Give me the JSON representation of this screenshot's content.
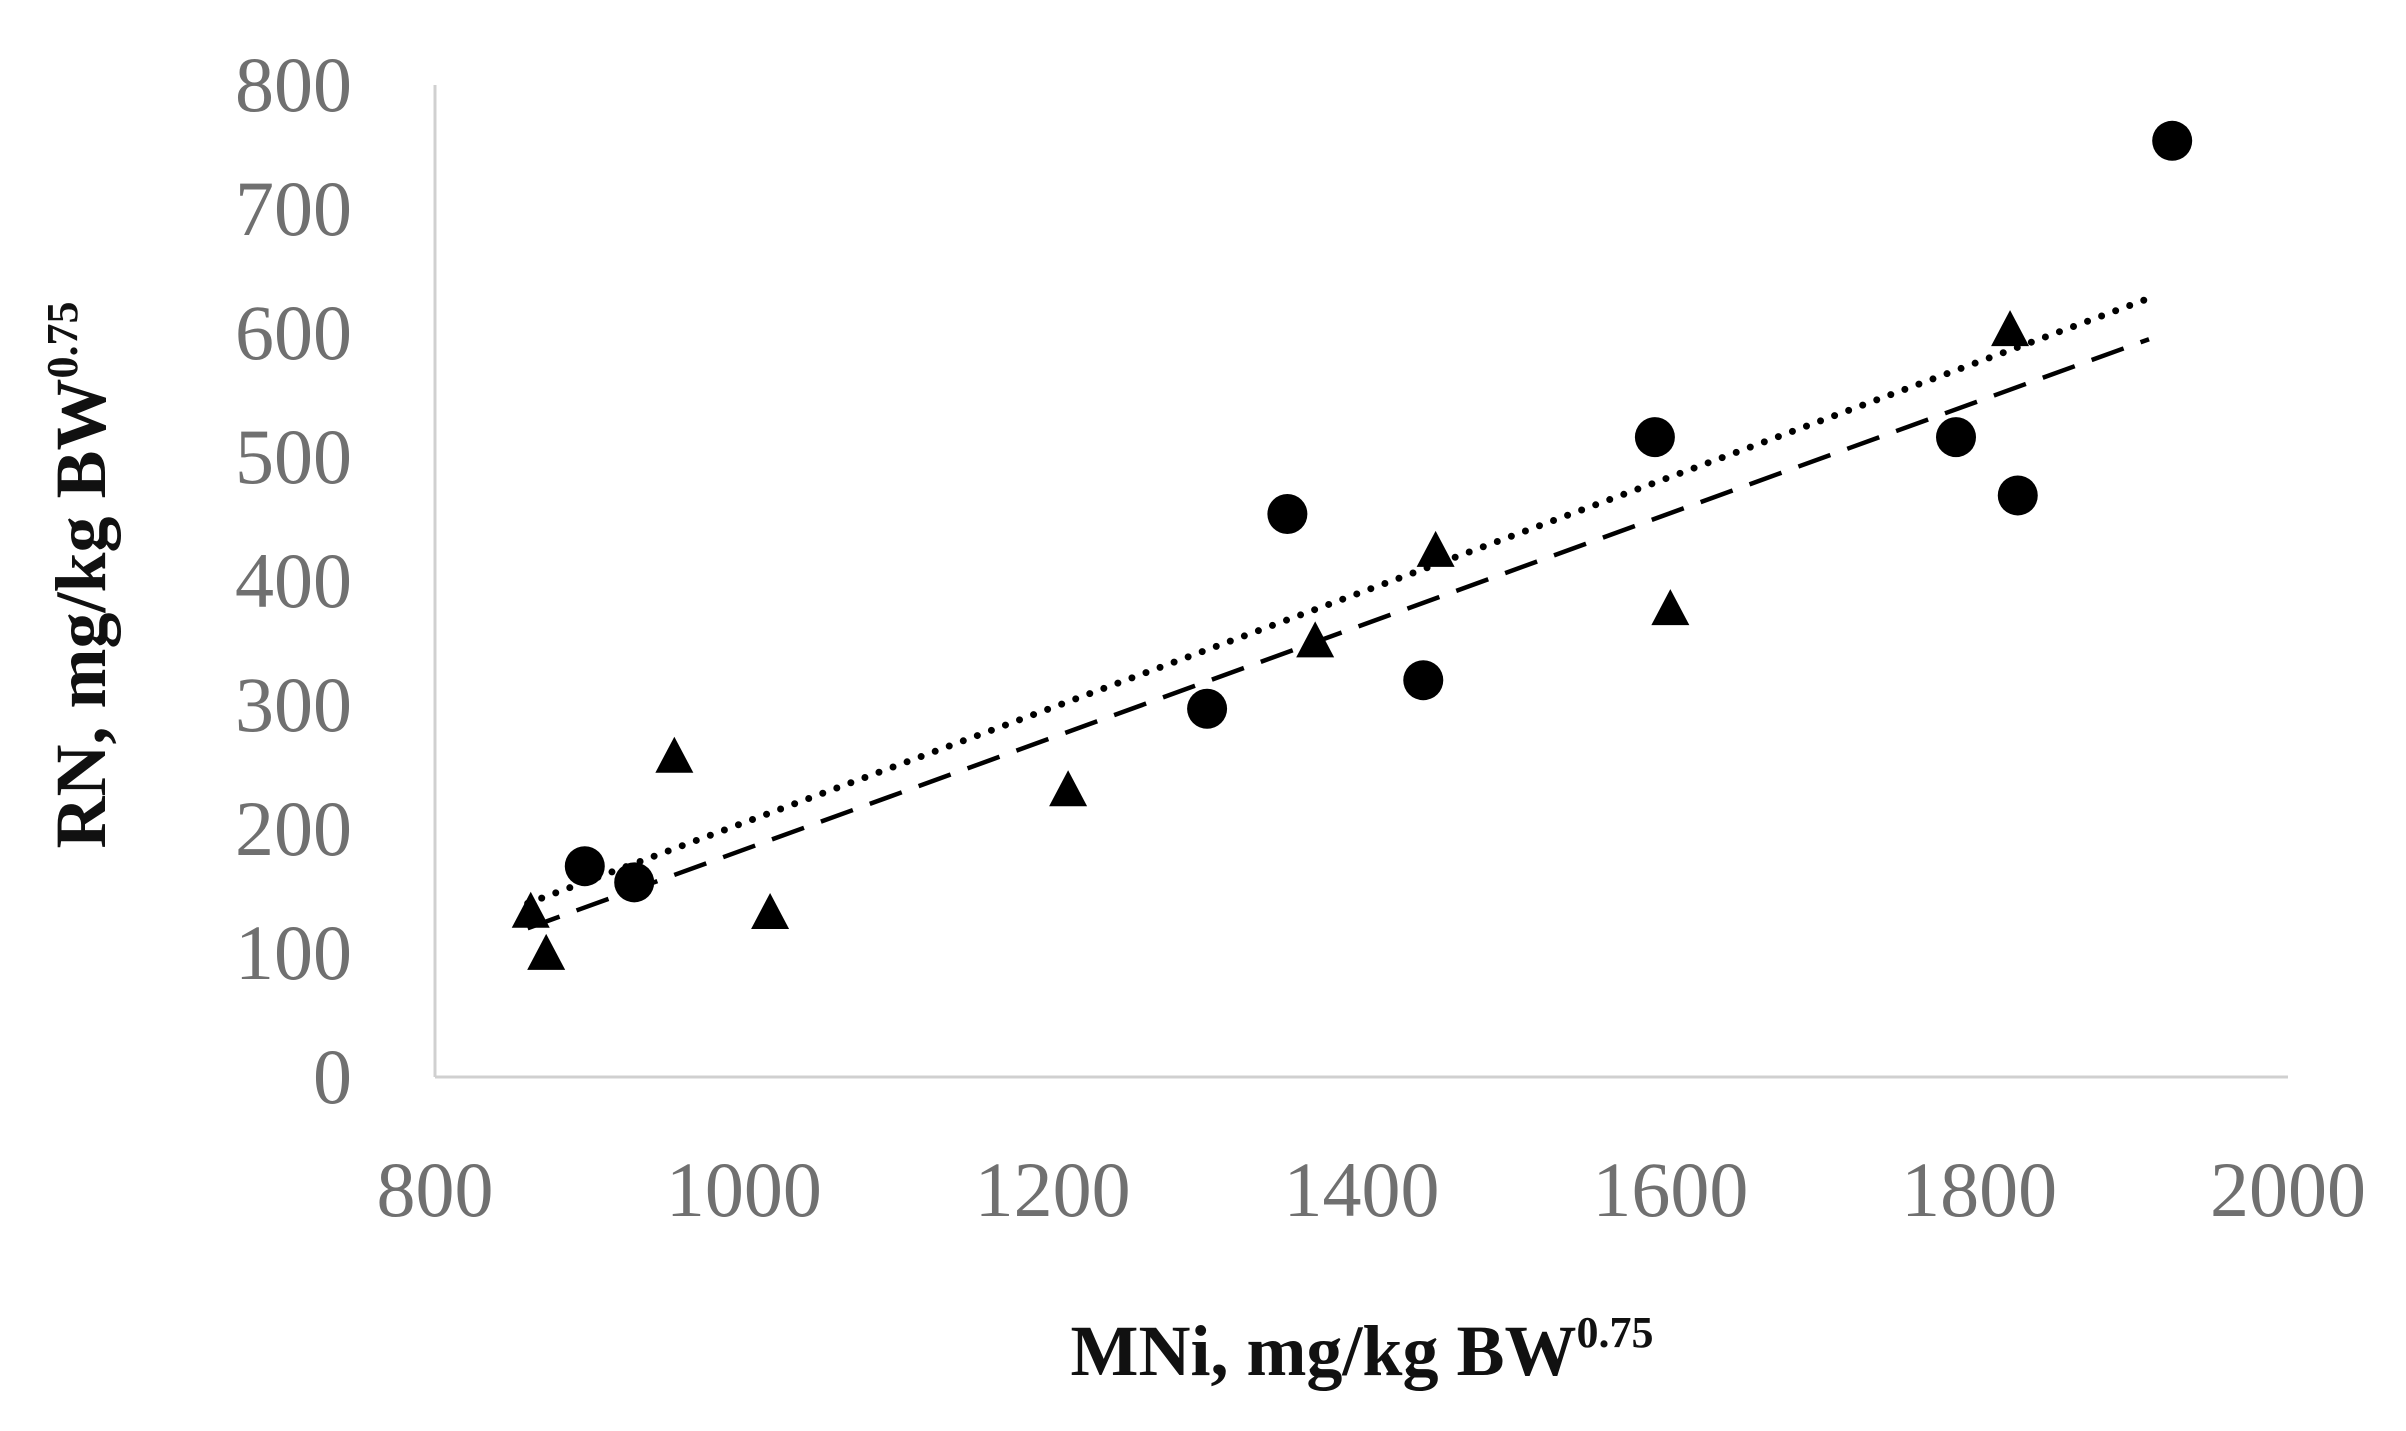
{
  "chart_data": {
    "type": "scatter",
    "title": "",
    "xlabel": "MNi, mg/kg BW",
    "xlabel_superscript": "0.75",
    "ylabel": "RN, mg/kg BW",
    "ylabel_superscript": "0.75",
    "xlim": [
      800,
      2000
    ],
    "ylim": [
      0,
      800
    ],
    "x_ticks": [
      800,
      1000,
      1200,
      1400,
      1600,
      1800,
      2000
    ],
    "y_ticks": [
      0,
      100,
      200,
      300,
      400,
      500,
      600,
      700,
      800
    ],
    "grid": false,
    "legend": "none",
    "series": [
      {
        "marker": "circle",
        "trendline": "dotted",
        "color": "#000000",
        "points": [
          {
            "x": 897,
            "y": 170
          },
          {
            "x": 929,
            "y": 157
          },
          {
            "x": 1300,
            "y": 297
          },
          {
            "x": 1352,
            "y": 454
          },
          {
            "x": 1440,
            "y": 320
          },
          {
            "x": 1590,
            "y": 516
          },
          {
            "x": 1785,
            "y": 516
          },
          {
            "x": 1825,
            "y": 469
          },
          {
            "x": 1925,
            "y": 755
          }
        ],
        "trend_points": [
          {
            "x": 860,
            "y": 140
          },
          {
            "x": 1910,
            "y": 628
          }
        ]
      },
      {
        "marker": "triangle",
        "trendline": "dashed",
        "color": "#000000",
        "points": [
          {
            "x": 862,
            "y": 132
          },
          {
            "x": 872,
            "y": 98
          },
          {
            "x": 955,
            "y": 257
          },
          {
            "x": 1017,
            "y": 131
          },
          {
            "x": 1210,
            "y": 230
          },
          {
            "x": 1370,
            "y": 350
          },
          {
            "x": 1448,
            "y": 423
          },
          {
            "x": 1600,
            "y": 376
          },
          {
            "x": 1820,
            "y": 601
          }
        ],
        "trend_points": [
          {
            "x": 860,
            "y": 120
          },
          {
            "x": 1910,
            "y": 595
          }
        ]
      }
    ]
  }
}
